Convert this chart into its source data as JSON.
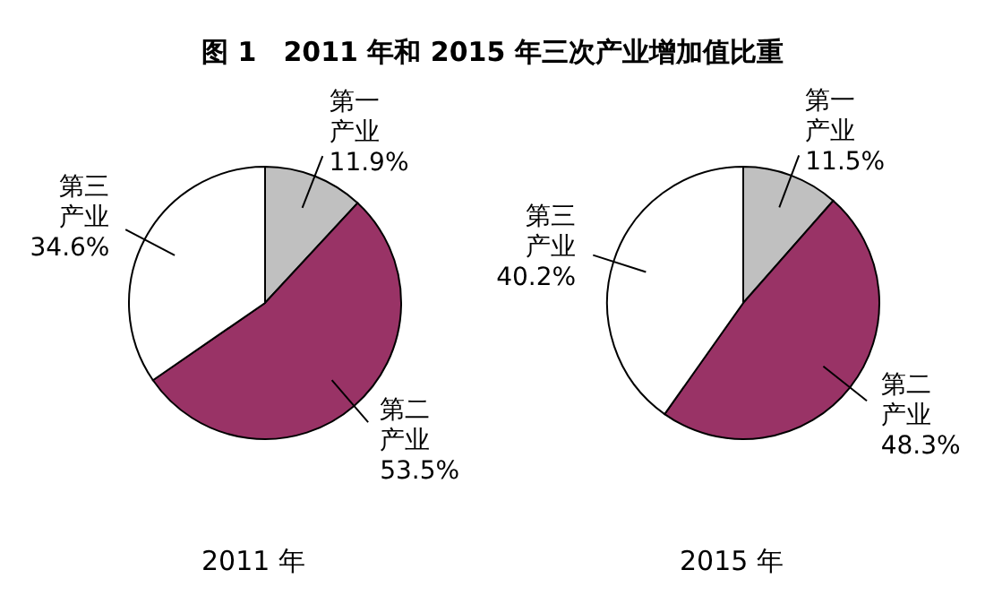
{
  "chart_data": [
    {
      "type": "pie",
      "title": "图 1　2011 年和 2015 年三次产业增加值比重",
      "xlabel": "2011 年",
      "categories": [
        "第一产业",
        "第二产业",
        "第三产业"
      ],
      "values": [
        11.9,
        53.5,
        34.6
      ],
      "value_labels": [
        "11.9%",
        "53.5%",
        "34.6%"
      ],
      "colors": [
        "#c0c0c0",
        "#993366",
        "#ffffff"
      ],
      "legend": false
    },
    {
      "type": "pie",
      "xlabel": "2015 年",
      "categories": [
        "第一产业",
        "第二产业",
        "第三产业"
      ],
      "values": [
        11.5,
        48.3,
        40.2
      ],
      "value_labels": [
        "11.5%",
        "48.3%",
        "40.2%"
      ],
      "colors": [
        "#c0c0c0",
        "#993366",
        "#ffffff"
      ],
      "legend": false
    }
  ]
}
